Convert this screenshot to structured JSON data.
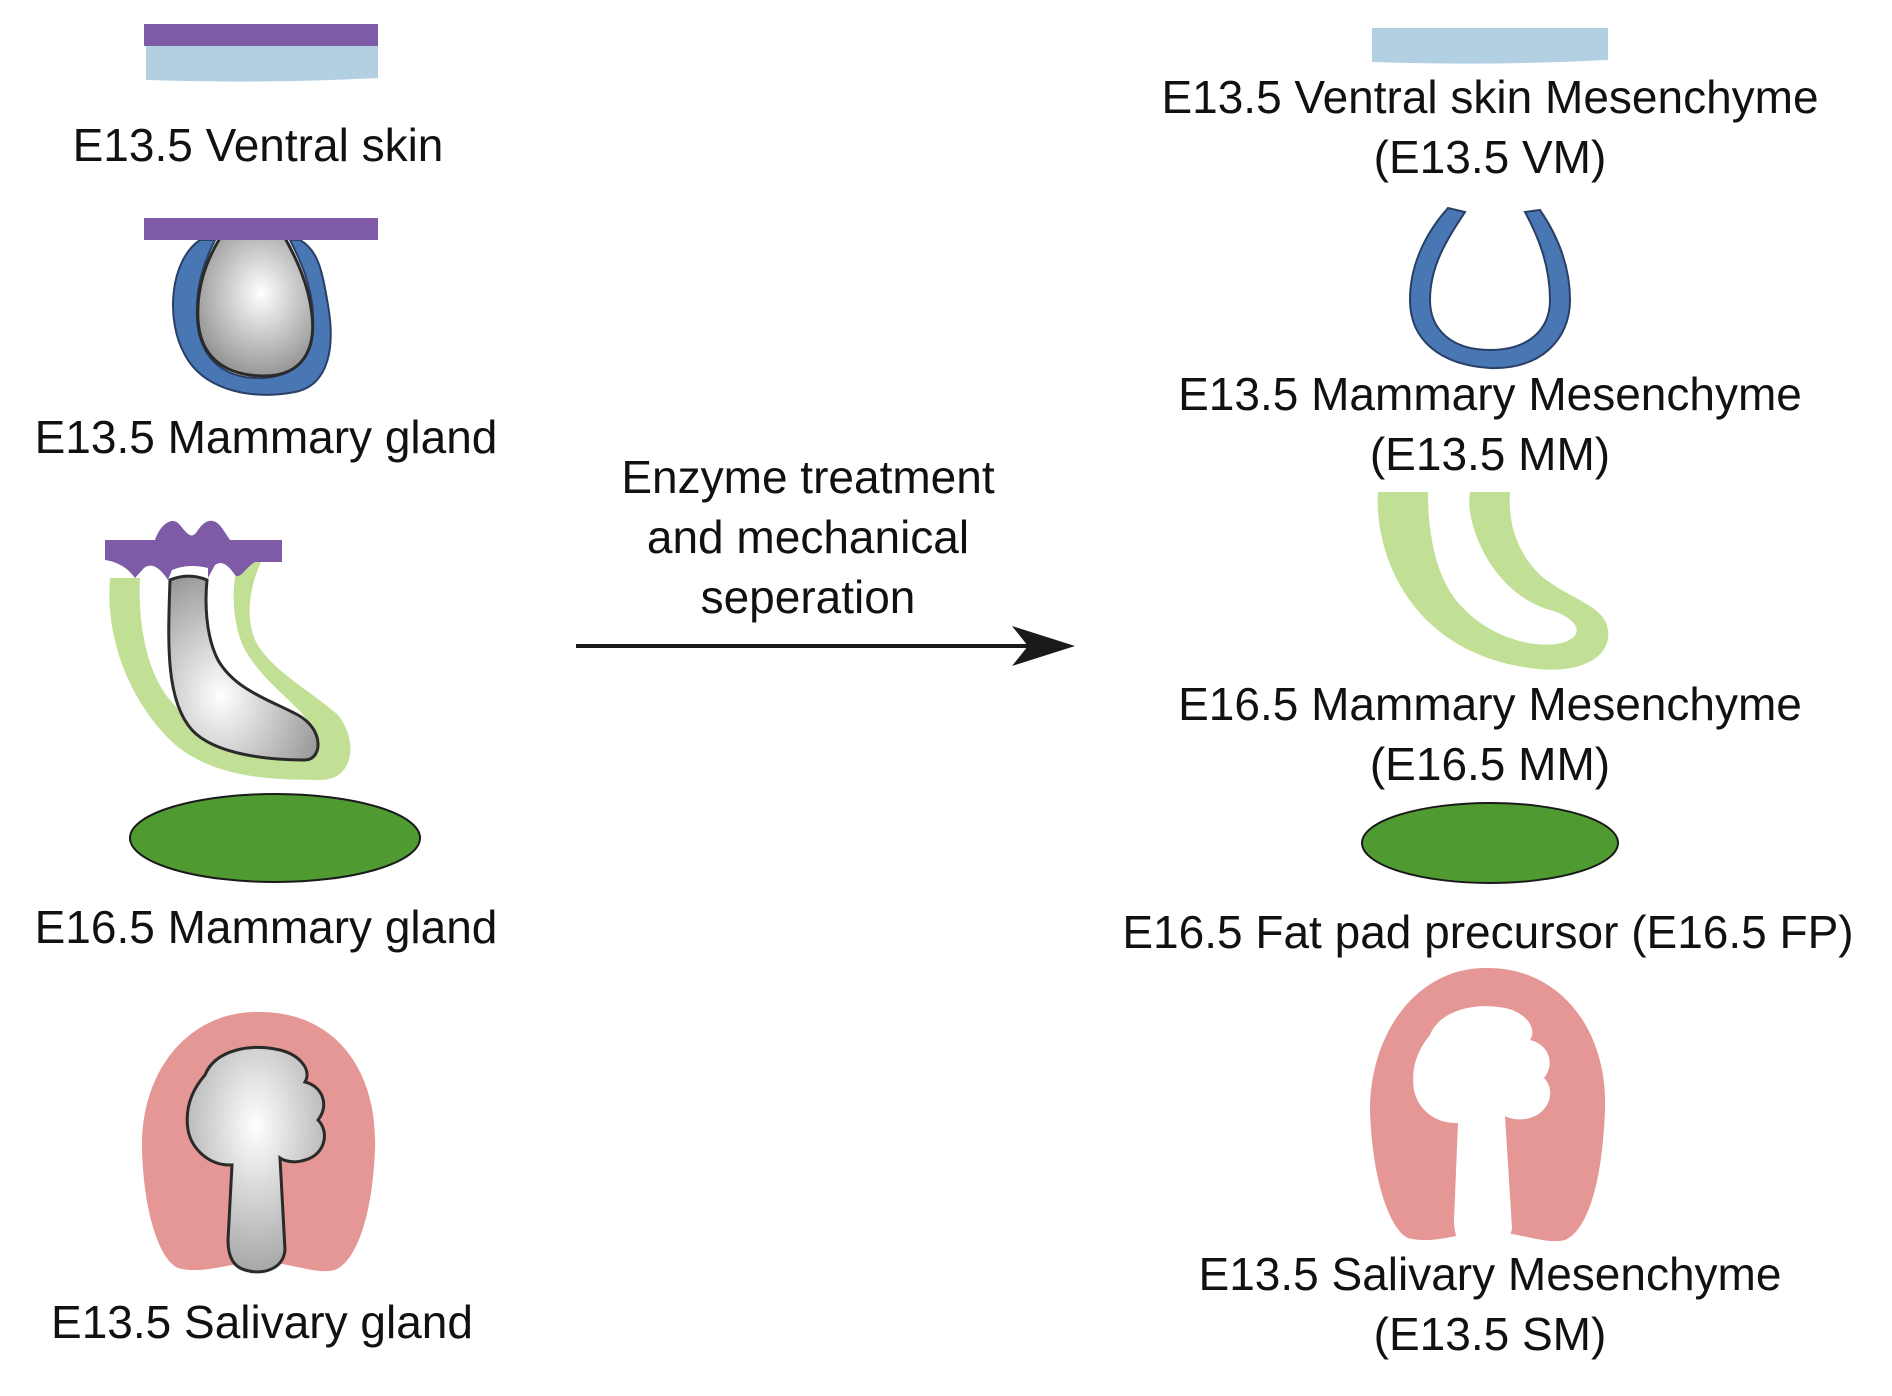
{
  "left_labels": {
    "ventral_skin": "E13.5 Ventral skin",
    "mammary_e13": "E13.5 Mammary gland",
    "mammary_e16": "E16.5 Mammary gland",
    "salivary": "E13.5 Salivary gland"
  },
  "process": {
    "line1": "Enzyme treatment",
    "line2": "and mechanical",
    "line3": "seperation"
  },
  "right_labels": {
    "vm_line1": "E13.5 Ventral skin Mesenchyme",
    "vm_line2": "(E13.5 VM)",
    "mm13_line1": "E13.5 Mammary Mesenchyme",
    "mm13_line2": "(E13.5 MM)",
    "mm16_line1": "E16.5 Mammary Mesenchyme",
    "mm16_line2": "(E16.5 MM)",
    "fp_line1": "E16.5 Fat pad precursor (E16.5 FP)",
    "sm_line1": "E13.5 Salivary Mesenchyme",
    "sm_line2": "(E13.5 SM)"
  },
  "colors": {
    "epidermis": "#7f5aa6",
    "skin_mesenchyme": "#b3d0e3",
    "mammary_mesenchyme_e13": "#4877b4",
    "mammary_mesenchyme_e16": "#c1e096",
    "fat_pad": "#4f9b31",
    "salivary_mesenchyme": "#e59796",
    "epithelium": "#a8a8a8"
  }
}
